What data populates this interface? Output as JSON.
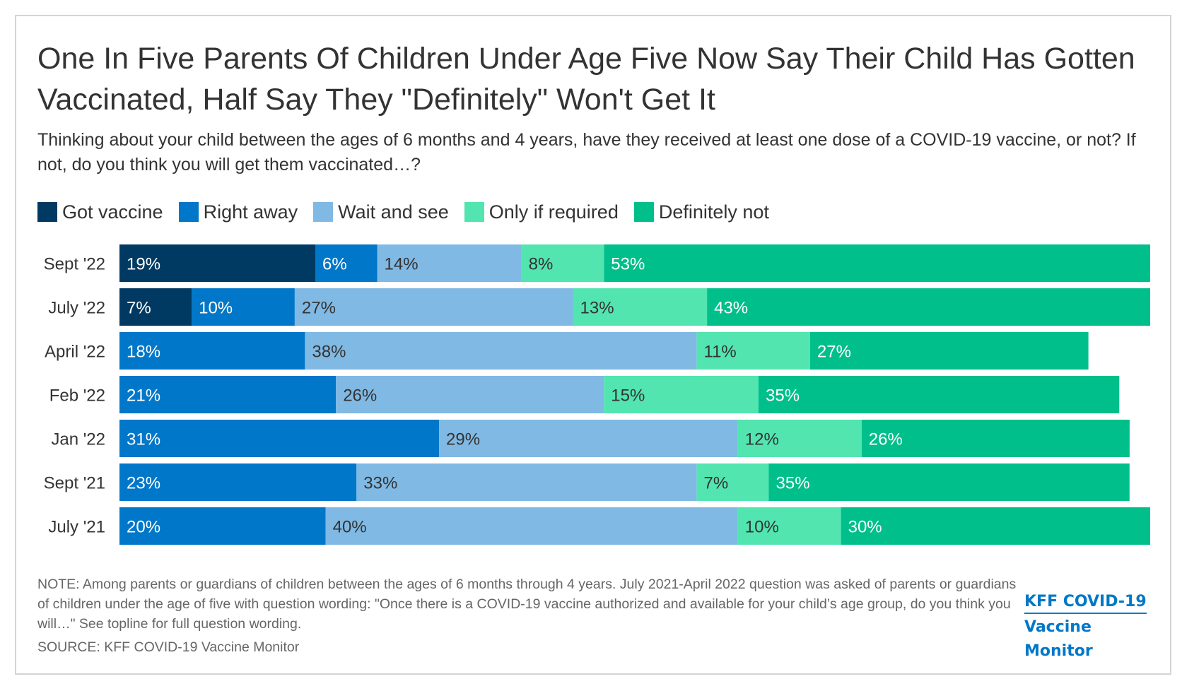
{
  "title": "One In Five Parents Of Children Under Age Five Now Say Their Child Has Gotten Vaccinated, Half Say They \"Definitely\" Won't Get It",
  "subtitle": "Thinking about your child between the ages of 6 months and 4 years, have they received at least one dose of a COVID-19 vaccine, or not? If not, do you think you will get them vaccinated…?",
  "note": "NOTE: Among parents or guardians of children between the ages of 6 months through 4 years. July 2021-April 2022 question was asked of parents or guardians of children under the age of five with question wording: \"Once there is a COVID-19 vaccine authorized and available for your child’s age group, do you think you will…\" See topline for full question wording.",
  "source": "SOURCE: KFF COVID-19 Vaccine Monitor",
  "logo": {
    "line1": "KFF COVID-19",
    "line2": "Vaccine Monitor"
  },
  "chart_data": {
    "type": "bar",
    "orientation": "horizontal",
    "stacked": true,
    "title": "One In Five Parents Of Children Under Age Five Now Say Their Child Has Gotten Vaccinated, Half Say They \"Definitely\" Won't Get It",
    "legend_position": "top-left",
    "grid": false,
    "unit": "%",
    "categories": [
      "Sept '22",
      "July '22",
      "April '22",
      "Feb '22",
      "Jan '22",
      "Sept '21",
      "July '21"
    ],
    "series": [
      {
        "name": "Got vaccine",
        "color": "#003a63",
        "label_color": "#ffffff",
        "values": [
          19,
          7,
          null,
          null,
          null,
          null,
          null
        ]
      },
      {
        "name": "Right away",
        "color": "#0077c8",
        "label_color": "#ffffff",
        "values": [
          6,
          10,
          18,
          21,
          31,
          23,
          20
        ]
      },
      {
        "name": "Wait and see",
        "color": "#80b9e3",
        "label_color": "#333333",
        "values": [
          14,
          27,
          38,
          26,
          29,
          33,
          40
        ]
      },
      {
        "name": "Only if required",
        "color": "#52e5b0",
        "label_color": "#333333",
        "values": [
          8,
          13,
          11,
          15,
          12,
          7,
          10
        ]
      },
      {
        "name": "Definitely not",
        "color": "#00bf8a",
        "label_color": "#ffffff",
        "values": [
          53,
          43,
          27,
          35,
          26,
          35,
          30
        ]
      }
    ]
  }
}
